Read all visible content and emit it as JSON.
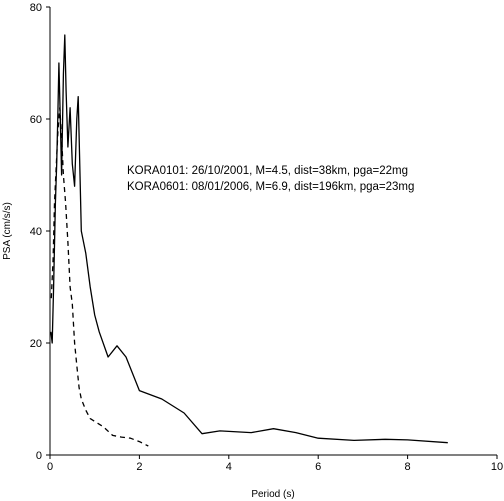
{
  "chart_data": {
    "type": "line",
    "xlabel": "Period (s)",
    "ylabel": "PSA (cm/s/s)",
    "xlim": [
      0,
      10
    ],
    "ylim": [
      0,
      80
    ],
    "x_ticks": [
      "0",
      "2",
      "4",
      "6",
      "8",
      "10"
    ],
    "y_ticks": [
      "0",
      "20",
      "40",
      "60",
      "80"
    ],
    "grid": false,
    "annotations": [
      "KORA0101: 26/10/2001, M=4.5, dist=38km, pga=22mg",
      "KORA0601: 08/01/2006, M=6.9, dist=196km, pga=23mg"
    ],
    "series": [
      {
        "style": "solid",
        "color": "#000000",
        "points": [
          [
            0.02,
            22
          ],
          [
            0.05,
            20
          ],
          [
            0.08,
            30
          ],
          [
            0.12,
            45
          ],
          [
            0.15,
            52
          ],
          [
            0.18,
            62
          ],
          [
            0.2,
            70
          ],
          [
            0.23,
            60
          ],
          [
            0.26,
            50
          ],
          [
            0.3,
            68
          ],
          [
            0.33,
            75
          ],
          [
            0.36,
            65
          ],
          [
            0.4,
            55
          ],
          [
            0.45,
            62
          ],
          [
            0.5,
            52
          ],
          [
            0.55,
            48
          ],
          [
            0.6,
            60
          ],
          [
            0.63,
            64
          ],
          [
            0.7,
            40
          ],
          [
            0.8,
            36
          ],
          [
            0.9,
            30
          ],
          [
            1.0,
            25
          ],
          [
            1.1,
            22
          ],
          [
            1.3,
            17.5
          ],
          [
            1.5,
            19.5
          ],
          [
            1.7,
            17.5
          ],
          [
            2.0,
            11.5
          ],
          [
            2.5,
            10
          ],
          [
            3.0,
            7.5
          ],
          [
            3.4,
            3.8
          ],
          [
            3.8,
            4.3
          ],
          [
            4.5,
            4
          ],
          [
            5.0,
            4.7
          ],
          [
            5.5,
            4
          ],
          [
            6.0,
            3
          ],
          [
            6.8,
            2.6
          ],
          [
            7.5,
            2.8
          ],
          [
            8.0,
            2.7
          ],
          [
            8.9,
            2.2
          ]
        ]
      },
      {
        "style": "dashed",
        "color": "#000000",
        "points": [
          [
            0.03,
            28
          ],
          [
            0.07,
            35
          ],
          [
            0.1,
            45
          ],
          [
            0.13,
            50
          ],
          [
            0.18,
            58
          ],
          [
            0.22,
            62
          ],
          [
            0.27,
            55
          ],
          [
            0.3,
            50
          ],
          [
            0.35,
            45
          ],
          [
            0.4,
            38
          ],
          [
            0.45,
            30
          ],
          [
            0.5,
            27
          ],
          [
            0.55,
            20
          ],
          [
            0.6,
            16
          ],
          [
            0.65,
            12
          ],
          [
            0.7,
            10
          ],
          [
            0.8,
            8
          ],
          [
            0.9,
            6.5
          ],
          [
            1.0,
            6
          ],
          [
            1.2,
            5
          ],
          [
            1.4,
            3.5
          ],
          [
            1.6,
            3.2
          ],
          [
            1.8,
            3
          ],
          [
            2.0,
            2.4
          ],
          [
            2.2,
            1.6
          ]
        ]
      }
    ]
  }
}
